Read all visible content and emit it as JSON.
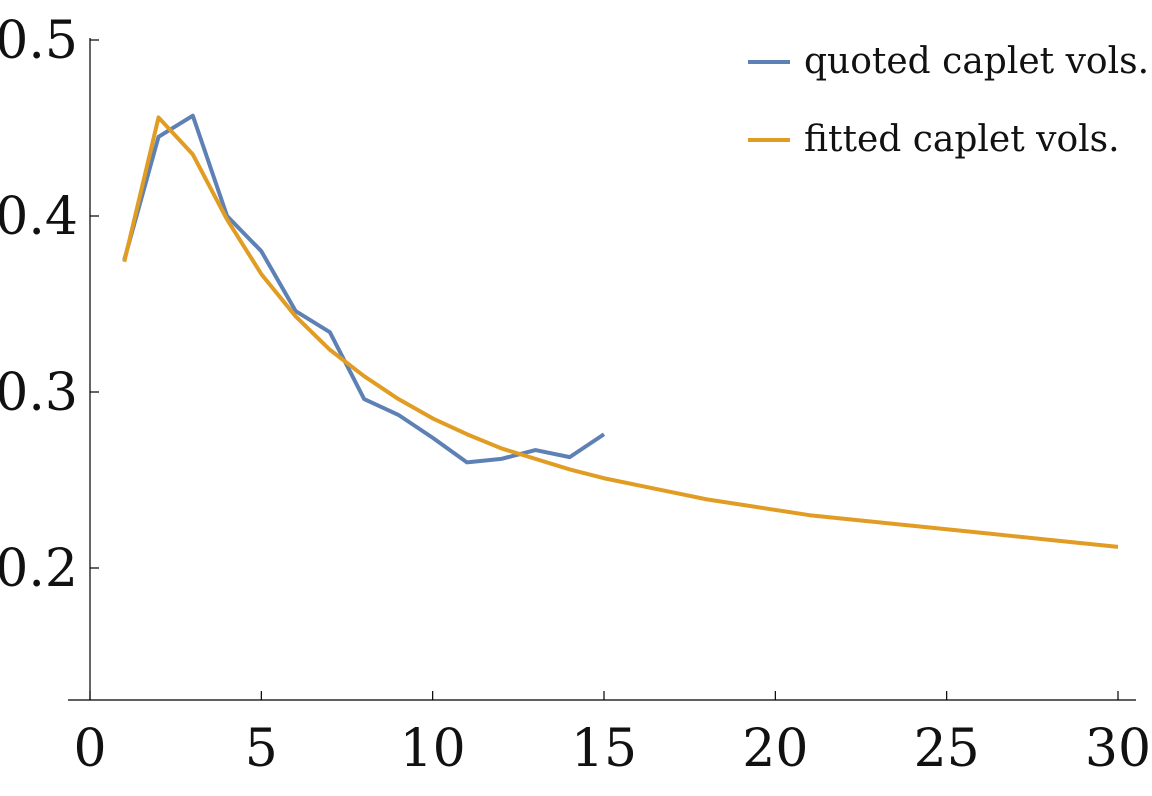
{
  "chart_data": {
    "type": "line",
    "title": "",
    "xlabel": "",
    "ylabel": "",
    "xlim": [
      0,
      30
    ],
    "ylim": [
      0.125,
      0.5
    ],
    "x_ticks": [
      0,
      5,
      10,
      15,
      20,
      25,
      30
    ],
    "x_tick_labels": [
      "0",
      "5",
      "10",
      "15",
      "20",
      "25",
      "30"
    ],
    "y_ticks": [
      0.2,
      0.3,
      0.4,
      0.5
    ],
    "y_tick_labels": [
      "0.2",
      "0.3",
      "0.4",
      "0.5"
    ],
    "grid": false,
    "legend_position": "top-right",
    "series": [
      {
        "name": "quoted caplet vols.",
        "color": "#5e81b5",
        "x": [
          1,
          2,
          3,
          4,
          5,
          6,
          7,
          8,
          9,
          10,
          11,
          12,
          13,
          14,
          15
        ],
        "y": [
          0.375,
          0.445,
          0.457,
          0.4,
          0.38,
          0.346,
          0.334,
          0.296,
          0.287,
          0.274,
          0.26,
          0.262,
          0.267,
          0.263,
          0.276
        ]
      },
      {
        "name": "fitted caplet vols.",
        "color": "#e19c24",
        "x": [
          1,
          2,
          3,
          4,
          5,
          6,
          7,
          8,
          9,
          10,
          11,
          12,
          13,
          14,
          15,
          16,
          17,
          18,
          19,
          20,
          21,
          22,
          23,
          24,
          25,
          26,
          27,
          28,
          29,
          30
        ],
        "y": [
          0.374,
          0.456,
          0.435,
          0.398,
          0.367,
          0.343,
          0.324,
          0.309,
          0.296,
          0.285,
          0.276,
          0.268,
          0.262,
          0.256,
          0.251,
          0.247,
          0.243,
          0.239,
          0.236,
          0.233,
          0.23,
          0.228,
          0.226,
          0.224,
          0.222,
          0.22,
          0.218,
          0.216,
          0.214,
          0.212
        ]
      }
    ]
  }
}
